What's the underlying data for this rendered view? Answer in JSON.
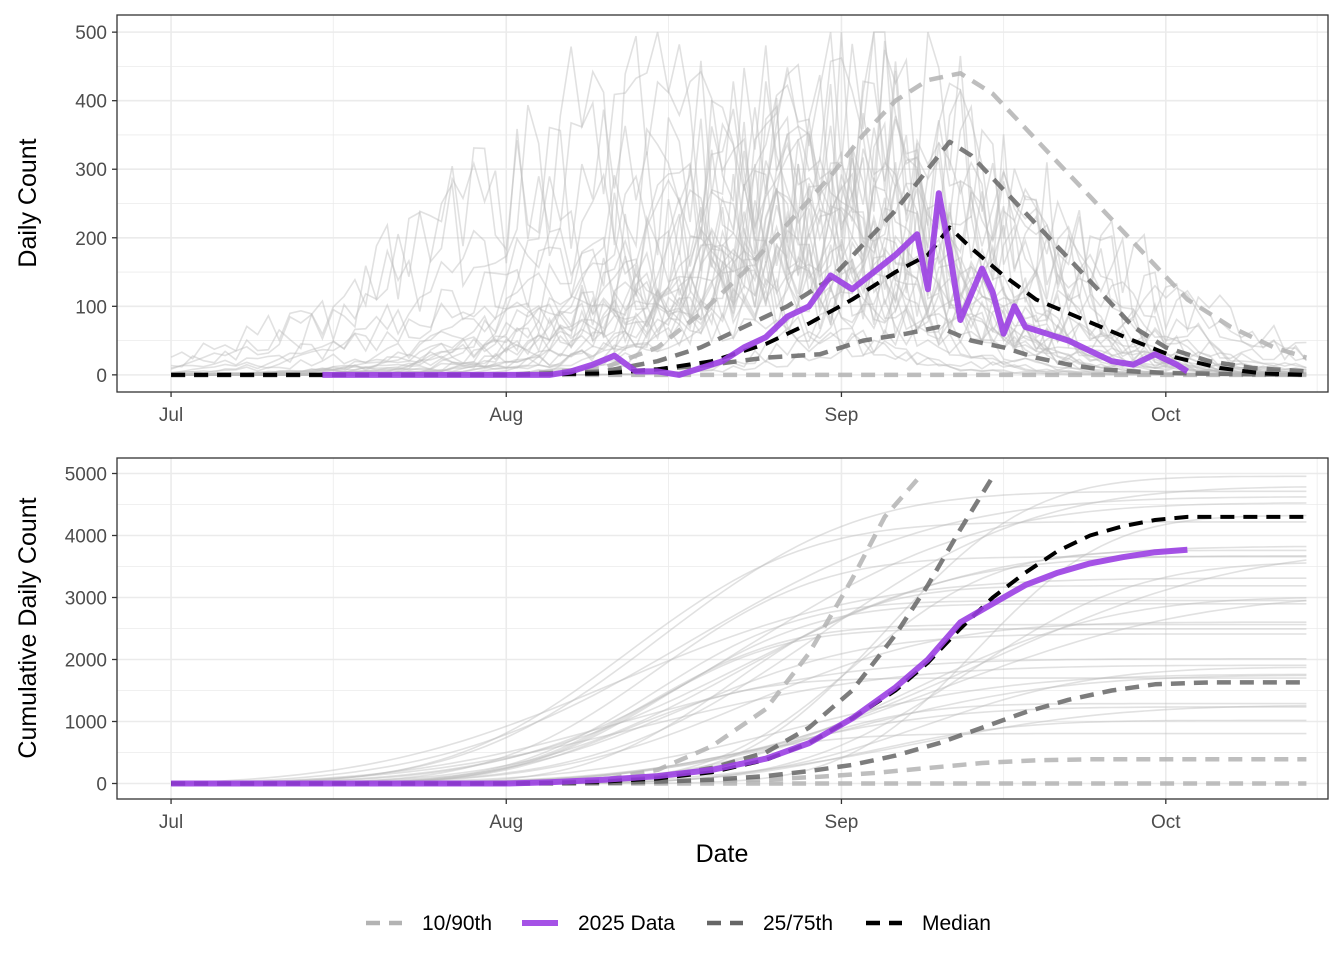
{
  "colors": {
    "data_2025": "#9B3FE3",
    "quantile_10_90": "#b3b3b3",
    "quantile_25_75": "#666666",
    "median": "#000000",
    "history": "#bdbdbd",
    "grid": "#ebebeb"
  },
  "chart_data": [
    {
      "type": "line",
      "panel": "top",
      "ylabel": "Daily Count",
      "xlabel": "",
      "x_ticks": [
        "Jul",
        "Aug",
        "Sep",
        "Oct"
      ],
      "xlim": [
        "2025-06-26",
        "2025-10-16"
      ],
      "ylim": [
        -25,
        525
      ],
      "y_ticks": [
        0,
        100,
        200,
        300,
        400,
        500
      ],
      "grid": true,
      "series": [
        {
          "name": "2025 Data",
          "style": "solid",
          "x": [
            "2025-07-15",
            "2025-08-01",
            "2025-08-05",
            "2025-08-07",
            "2025-08-09",
            "2025-08-11",
            "2025-08-13",
            "2025-08-15",
            "2025-08-17",
            "2025-08-19",
            "2025-08-21",
            "2025-08-23",
            "2025-08-25",
            "2025-08-27",
            "2025-08-29",
            "2025-08-31",
            "2025-09-02",
            "2025-09-04",
            "2025-09-06",
            "2025-09-08",
            "2025-09-09",
            "2025-09-10",
            "2025-09-11",
            "2025-09-12",
            "2025-09-14",
            "2025-09-15",
            "2025-09-16",
            "2025-09-17",
            "2025-09-18",
            "2025-09-20",
            "2025-09-22",
            "2025-09-24",
            "2025-09-26",
            "2025-09-28",
            "2025-09-30",
            "2025-10-02",
            "2025-10-03"
          ],
          "values": [
            0,
            0,
            0,
            5,
            15,
            28,
            5,
            5,
            0,
            10,
            20,
            40,
            55,
            85,
            100,
            145,
            125,
            150,
            175,
            205,
            125,
            265,
            180,
            80,
            155,
            120,
            60,
            100,
            70,
            60,
            50,
            35,
            20,
            15,
            30,
            15,
            5
          ]
        },
        {
          "name": "25/75th",
          "style": "dashed",
          "x": [
            "2025-07-01",
            "2025-08-01",
            "2025-08-10",
            "2025-08-15",
            "2025-08-20",
            "2025-08-25",
            "2025-08-30",
            "2025-09-03",
            "2025-09-07",
            "2025-09-10",
            "2025-09-13",
            "2025-09-16",
            "2025-09-19",
            "2025-09-22",
            "2025-09-25",
            "2025-09-28",
            "2025-10-01",
            "2025-10-04",
            "2025-10-08",
            "2025-10-14"
          ],
          "values": [
            0,
            0,
            3,
            8,
            15,
            25,
            30,
            50,
            60,
            70,
            50,
            40,
            25,
            15,
            8,
            5,
            3,
            2,
            1,
            0
          ]
        },
        {
          "name": "25/75th",
          "style": "dashed",
          "x": [
            "2025-07-01",
            "2025-08-01",
            "2025-08-10",
            "2025-08-15",
            "2025-08-19",
            "2025-08-23",
            "2025-08-27",
            "2025-08-31",
            "2025-09-03",
            "2025-09-06",
            "2025-09-09",
            "2025-09-11",
            "2025-09-13",
            "2025-09-16",
            "2025-09-19",
            "2025-09-22",
            "2025-09-25",
            "2025-09-28",
            "2025-10-01",
            "2025-10-05",
            "2025-10-09",
            "2025-10-14"
          ],
          "values": [
            0,
            0,
            5,
            20,
            40,
            70,
            100,
            140,
            190,
            240,
            300,
            340,
            320,
            270,
            220,
            170,
            120,
            70,
            40,
            20,
            10,
            5
          ]
        },
        {
          "name": "Median",
          "style": "dashed",
          "x": [
            "2025-07-01",
            "2025-08-01",
            "2025-08-10",
            "2025-08-15",
            "2025-08-20",
            "2025-08-25",
            "2025-08-29",
            "2025-09-02",
            "2025-09-06",
            "2025-09-09",
            "2025-09-11",
            "2025-09-13",
            "2025-09-16",
            "2025-09-19",
            "2025-09-22",
            "2025-09-25",
            "2025-09-28",
            "2025-10-02",
            "2025-10-06",
            "2025-10-10",
            "2025-10-14"
          ],
          "values": [
            0,
            0,
            2,
            8,
            20,
            45,
            75,
            110,
            150,
            175,
            215,
            185,
            145,
            110,
            90,
            70,
            50,
            25,
            10,
            2,
            0
          ]
        },
        {
          "name": "10/90th",
          "style": "dashed",
          "x": [
            "2025-07-01",
            "2025-08-01",
            "2025-08-10",
            "2025-08-15",
            "2025-08-19",
            "2025-08-23",
            "2025-08-27",
            "2025-08-31",
            "2025-09-03",
            "2025-09-06",
            "2025-09-09",
            "2025-09-12",
            "2025-09-15",
            "2025-09-18",
            "2025-09-21",
            "2025-09-24",
            "2025-09-27",
            "2025-09-30",
            "2025-10-03",
            "2025-10-07",
            "2025-10-11",
            "2025-10-14"
          ],
          "values": [
            0,
            0,
            10,
            40,
            90,
            150,
            220,
            290,
            350,
            400,
            430,
            440,
            410,
            360,
            310,
            260,
            210,
            160,
            110,
            70,
            40,
            25
          ]
        },
        {
          "name": "10/90th",
          "style": "dashed",
          "x": [
            "2025-07-01",
            "2025-10-14"
          ],
          "values": [
            0,
            0
          ]
        }
      ]
    },
    {
      "type": "line",
      "panel": "bottom",
      "ylabel": "Cumulative Daily Count",
      "xlabel": "Date",
      "x_ticks": [
        "Jul",
        "Aug",
        "Sep",
        "Oct"
      ],
      "xlim": [
        "2025-06-26",
        "2025-10-16"
      ],
      "ylim": [
        -250,
        5250
      ],
      "y_ticks": [
        0,
        1000,
        2000,
        3000,
        4000,
        5000
      ],
      "grid": true,
      "series": [
        {
          "name": "2025 Data",
          "style": "solid",
          "x": [
            "2025-07-01",
            "2025-08-01",
            "2025-08-05",
            "2025-08-10",
            "2025-08-15",
            "2025-08-20",
            "2025-08-25",
            "2025-08-29",
            "2025-09-02",
            "2025-09-06",
            "2025-09-09",
            "2025-09-12",
            "2025-09-15",
            "2025-09-18",
            "2025-09-21",
            "2025-09-24",
            "2025-09-27",
            "2025-09-30",
            "2025-10-03"
          ],
          "values": [
            0,
            0,
            20,
            60,
            120,
            220,
            400,
            650,
            1050,
            1550,
            2000,
            2600,
            2900,
            3200,
            3400,
            3550,
            3650,
            3730,
            3770
          ]
        },
        {
          "name": "Median",
          "style": "dashed",
          "x": [
            "2025-07-01",
            "2025-08-01",
            "2025-08-05",
            "2025-08-10",
            "2025-08-15",
            "2025-08-20",
            "2025-08-25",
            "2025-08-29",
            "2025-09-02",
            "2025-09-06",
            "2025-09-09",
            "2025-09-12",
            "2025-09-15",
            "2025-09-18",
            "2025-09-21",
            "2025-09-24",
            "2025-09-27",
            "2025-09-30",
            "2025-10-03",
            "2025-10-08",
            "2025-10-14"
          ],
          "values": [
            0,
            0,
            10,
            30,
            80,
            180,
            380,
            650,
            1050,
            1500,
            1950,
            2500,
            3000,
            3400,
            3750,
            4000,
            4150,
            4250,
            4300,
            4300,
            4300
          ]
        },
        {
          "name": "25/75th",
          "style": "dashed",
          "x": [
            "2025-07-01",
            "2025-08-01",
            "2025-08-10",
            "2025-08-15",
            "2025-08-20",
            "2025-08-25",
            "2025-08-29",
            "2025-09-02",
            "2025-09-06",
            "2025-09-10",
            "2025-09-14",
            "2025-09-18",
            "2025-09-22",
            "2025-09-26",
            "2025-09-30",
            "2025-10-05",
            "2025-10-14"
          ],
          "values": [
            0,
            0,
            10,
            30,
            60,
            120,
            200,
            300,
            450,
            650,
            900,
            1150,
            1350,
            1500,
            1600,
            1630,
            1630
          ]
        },
        {
          "name": "25/75th",
          "style": "dashed",
          "x": [
            "2025-07-01",
            "2025-08-01",
            "2025-08-10",
            "2025-08-15",
            "2025-08-20",
            "2025-08-25",
            "2025-08-29",
            "2025-09-02",
            "2025-09-06",
            "2025-09-09",
            "2025-09-12",
            "2025-09-15"
          ],
          "values": [
            0,
            0,
            30,
            100,
            250,
            500,
            900,
            1500,
            2400,
            3200,
            4100,
            4950
          ]
        },
        {
          "name": "10/90th",
          "style": "dashed",
          "x": [
            "2025-07-01",
            "2025-08-01",
            "2025-08-10",
            "2025-08-15",
            "2025-08-20",
            "2025-08-25",
            "2025-08-30",
            "2025-09-04",
            "2025-09-09",
            "2025-09-14",
            "2025-09-19",
            "2025-09-24",
            "2025-09-30",
            "2025-10-14"
          ],
          "values": [
            0,
            0,
            5,
            15,
            35,
            65,
            110,
            170,
            250,
            330,
            375,
            390,
            390,
            390
          ]
        },
        {
          "name": "10/90th",
          "style": "dashed",
          "x": [
            "2025-07-01",
            "2025-08-01",
            "2025-08-10",
            "2025-08-15",
            "2025-08-20",
            "2025-08-25",
            "2025-08-29",
            "2025-09-02",
            "2025-09-05",
            "2025-09-08"
          ],
          "values": [
            0,
            0,
            60,
            220,
            600,
            1200,
            2100,
            3300,
            4300,
            4900
          ]
        },
        {
          "name": "10/90th",
          "style": "dashed",
          "x": [
            "2025-07-01",
            "2025-10-14"
          ],
          "values": [
            0,
            0
          ]
        }
      ]
    }
  ],
  "legend": {
    "position": "bottom",
    "items": [
      {
        "label": "10/90th",
        "color": "#b3b3b3",
        "style": "dashed"
      },
      {
        "label": "2025 Data",
        "color": "#9B3FE3",
        "style": "solid"
      },
      {
        "label": "25/75th",
        "color": "#666666",
        "style": "dashed"
      },
      {
        "label": "Median",
        "color": "#000000",
        "style": "dashed"
      }
    ]
  }
}
